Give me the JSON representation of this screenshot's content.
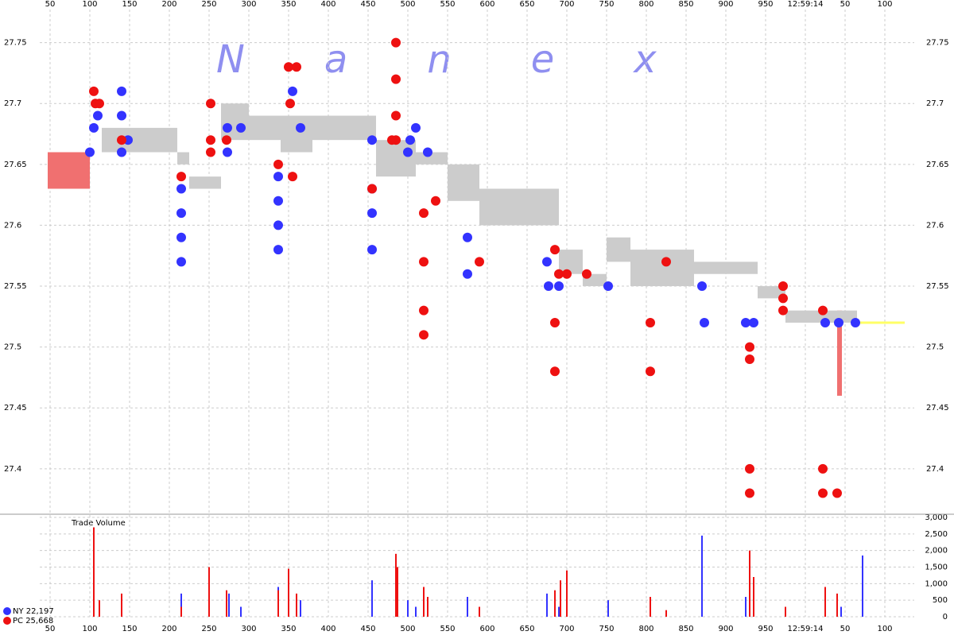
{
  "chart_data": [
    {
      "type": "scatter",
      "watermark": "Nanex",
      "xlim": [
        37,
        1137
      ],
      "xticks": [
        50,
        100,
        150,
        200,
        250,
        300,
        350,
        400,
        450,
        500,
        550,
        600,
        650,
        700,
        750,
        800,
        850,
        900,
        950,
        {
          "value": 1000,
          "label": "12:59:14"
        },
        {
          "value": 1050,
          "label": "50"
        },
        {
          "value": 1100,
          "label": "100"
        }
      ],
      "ylim": [
        27.364,
        27.785
      ],
      "yticks": [
        27.4,
        27.45,
        27.5,
        27.55,
        27.6,
        27.65,
        27.7,
        27.75
      ],
      "grid": true,
      "quote_band": {
        "color": "#cccccc",
        "x": [
          115,
          130,
          210,
          225,
          265,
          300,
          340,
          380,
          460,
          510,
          550,
          590,
          690,
          720,
          750,
          780,
          860,
          940,
          975,
          1060
        ],
        "low": [
          27.66,
          27.66,
          27.65,
          27.63,
          27.67,
          27.67,
          27.66,
          27.67,
          27.64,
          27.65,
          27.62,
          27.6,
          27.56,
          27.55,
          27.57,
          27.55,
          27.56,
          27.54,
          27.52,
          27.52
        ],
        "high": [
          27.68,
          27.68,
          27.66,
          27.64,
          27.7,
          27.69,
          27.69,
          27.69,
          27.67,
          27.66,
          27.65,
          27.63,
          27.58,
          27.56,
          27.59,
          27.58,
          27.57,
          27.55,
          27.53,
          27.53
        ]
      },
      "highlights": [
        {
          "x": [
            47,
            100
          ],
          "low": 27.63,
          "high": 27.66,
          "color": "#f07070"
        },
        {
          "x": [
            1040,
            1046
          ],
          "low": 27.46,
          "high": 27.53,
          "color": "#f07070"
        }
      ],
      "close_line": {
        "x": [
          1060,
          1125
        ],
        "y": [
          27.52,
          27.52
        ],
        "color": "#ffff66"
      },
      "series": [
        {
          "color": "#3333ff",
          "x": [
            100,
            105,
            110,
            140,
            140,
            140,
            148,
            215,
            215,
            215,
            215,
            273,
            273,
            290,
            337,
            337,
            337,
            337,
            355,
            365,
            455,
            455,
            455,
            455,
            500,
            503,
            510,
            525,
            575,
            575,
            675,
            677,
            690,
            752,
            870,
            873,
            925,
            935,
            1025,
            1042,
            1063
          ],
          "values": [
            27.66,
            27.68,
            27.69,
            27.71,
            27.69,
            27.66,
            27.67,
            27.63,
            27.61,
            27.59,
            27.57,
            27.68,
            27.66,
            27.68,
            27.64,
            27.62,
            27.6,
            27.58,
            27.71,
            27.68,
            27.67,
            27.63,
            27.61,
            27.58,
            27.66,
            27.67,
            27.68,
            27.66,
            27.59,
            27.56,
            27.57,
            27.55,
            27.55,
            27.55,
            27.55,
            27.52,
            27.52,
            27.52,
            27.52,
            27.52,
            27.52
          ]
        },
        {
          "color": "#ee1111",
          "x": [
            105,
            107,
            112,
            140,
            215,
            252,
            252,
            252,
            272,
            337,
            350,
            352,
            355,
            360,
            455,
            485,
            485,
            485,
            485,
            480,
            520,
            520,
            520,
            520,
            535,
            590,
            685,
            685,
            685,
            690,
            700,
            725,
            805,
            805,
            825,
            930,
            930,
            930,
            930,
            972,
            972,
            972,
            1022,
            1022,
            1022,
            1040
          ],
          "values": [
            27.71,
            27.7,
            27.7,
            27.67,
            27.64,
            27.7,
            27.67,
            27.66,
            27.67,
            27.65,
            27.73,
            27.7,
            27.64,
            27.73,
            27.63,
            27.75,
            27.72,
            27.69,
            27.67,
            27.67,
            27.61,
            27.57,
            27.53,
            27.51,
            27.62,
            27.57,
            27.58,
            27.52,
            27.48,
            27.56,
            27.56,
            27.56,
            27.52,
            27.48,
            27.57,
            27.5,
            27.49,
            27.4,
            27.38,
            27.55,
            27.54,
            27.53,
            27.53,
            27.4,
            27.38,
            27.38
          ]
        }
      ]
    },
    {
      "type": "bar",
      "title": "Trade Volume",
      "ylim": [
        0,
        3000
      ],
      "yticks": [
        0,
        500,
        {
          "value": 1000,
          "label": "1,000"
        },
        {
          "value": 1500,
          "label": "1,500"
        },
        {
          "value": 2000,
          "label": "2,000"
        },
        {
          "value": 2500,
          "label": "2,500"
        },
        {
          "value": 3000,
          "label": "3,000"
        }
      ],
      "series": [
        {
          "name": "NY 22,197",
          "color": "#3333ff",
          "x": [
            105,
            140,
            215,
            275,
            290,
            337,
            365,
            455,
            500,
            510,
            575,
            675,
            690,
            752,
            805,
            870,
            925,
            935,
            1025,
            1045,
            1072
          ],
          "values": [
            500,
            300,
            700,
            700,
            300,
            900,
            500,
            1100,
            500,
            300,
            600,
            700,
            300,
            500,
            300,
            2450,
            600,
            500,
            500,
            300,
            1850
          ]
        },
        {
          "name": "PC 25,668",
          "color": "#ee1111",
          "x": [
            105,
            112,
            140,
            215,
            250,
            272,
            337,
            350,
            360,
            485,
            487,
            520,
            525,
            590,
            685,
            692,
            700,
            805,
            825,
            930,
            935,
            975,
            1025,
            1040
          ],
          "values": [
            2700,
            500,
            700,
            300,
            1500,
            800,
            800,
            1450,
            700,
            1900,
            1500,
            900,
            600,
            300,
            800,
            1100,
            1400,
            600,
            200,
            2000,
            1200,
            300,
            900,
            700
          ]
        }
      ]
    }
  ]
}
